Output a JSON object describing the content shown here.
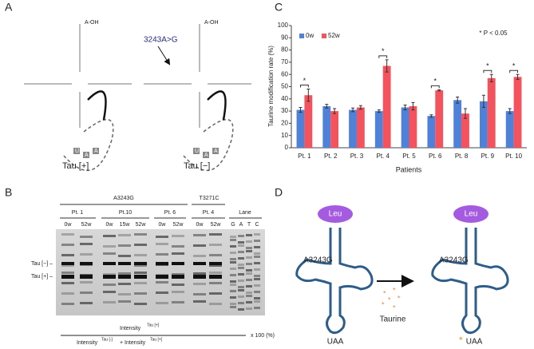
{
  "panels": {
    "a": "A",
    "b": "B",
    "c": "C",
    "d": "D"
  },
  "panel_a": {
    "left_label": "Tau [+]",
    "right_label": "Tau [−]",
    "mutation": "3243A>G",
    "acceptor_end": "A-OH",
    "loop_bases": [
      "U",
      "A",
      "A"
    ]
  },
  "panel_b": {
    "groups": [
      "A3243G",
      "T3271C"
    ],
    "patients": [
      "Pt. 1",
      "Pt.10",
      "Pt. 6",
      "Pt. 4"
    ],
    "lane_header": "Lane",
    "lanes": [
      "0w",
      "52w",
      "0w",
      "15w",
      "52w",
      "0w",
      "52w",
      "0w",
      "52w",
      "G",
      "A",
      "T",
      "C"
    ],
    "band_minus": "Tau [−] –",
    "band_plus": "Tau [+] –",
    "formula": {
      "numerator": "Intensity",
      "numerator_sup": "Tau [+]",
      "denominator_a": "Intensity",
      "denominator_a_sup": "Tau [-]",
      "denominator_plus": "+ Intensity",
      "denominator_b_sup": "Tau [+]",
      "factor": "x 100 (%)"
    }
  },
  "chart_data": {
    "type": "bar",
    "y_label": "Taurine modification rate (%)",
    "x_label": "Patients",
    "categories": [
      "Pt. 1",
      "Pt. 2",
      "Pt. 3",
      "Pt. 4",
      "Pt. 5",
      "Pt. 6",
      "Pt. 8",
      "Pt. 9",
      "Pt. 10"
    ],
    "series": [
      {
        "name": "0w",
        "color": "#4f81d9",
        "values": [
          31,
          34,
          31,
          30,
          33,
          26,
          39,
          38,
          30
        ],
        "errors": [
          2,
          1.5,
          1.5,
          1,
          2,
          1,
          2.5,
          5,
          2
        ]
      },
      {
        "name": "52w",
        "color": "#f4525d",
        "values": [
          43,
          30,
          33,
          67,
          34,
          47,
          28,
          57,
          58
        ],
        "errors": [
          5,
          2,
          1.5,
          5,
          3,
          0.5,
          4,
          3,
          2
        ]
      }
    ],
    "ylim": [
      0,
      100
    ],
    "yticks": [
      0,
      10,
      20,
      30,
      40,
      50,
      60,
      70,
      80,
      90,
      100
    ],
    "significant": [
      true,
      false,
      false,
      true,
      false,
      true,
      false,
      true,
      true
    ],
    "significance_label": "*",
    "annotation": "* P < 0.05",
    "legend": "top-left"
  },
  "panel_d": {
    "amino_acid": "Leu",
    "mutation": "A3243G",
    "modifier": "Taurine",
    "anticodon": "UAA"
  }
}
